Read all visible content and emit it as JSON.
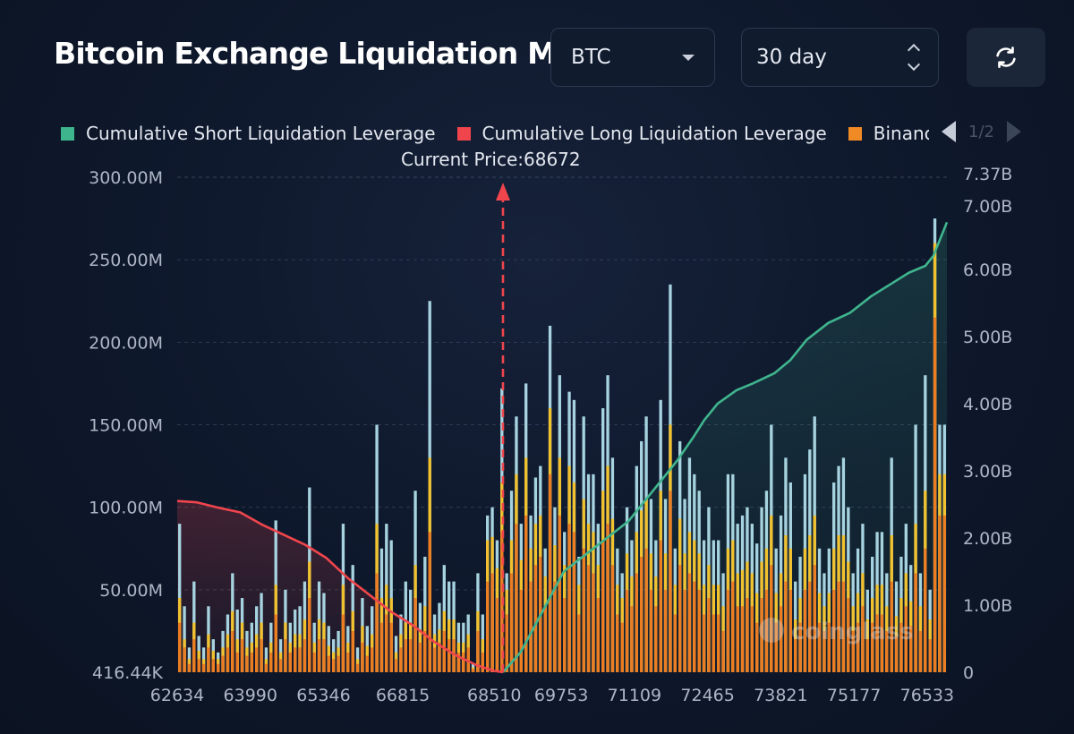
{
  "header": {
    "title": "Bitcoin Exchange Liquidation Map",
    "coin_select": "BTC",
    "range_select": "30 day",
    "refresh_icon": "refresh-icon"
  },
  "legend": {
    "items": [
      {
        "label": "Cumulative Short Liquidation Leverage",
        "color": "#3fb58e"
      },
      {
        "label": "Cumulative Long Liquidation Leverage",
        "color": "#f0454c"
      },
      {
        "label": "Binance",
        "color": "#f08a24"
      }
    ],
    "page": "1/2"
  },
  "current_price_label": "Current Price:68672",
  "watermark": "coinglass",
  "colors": {
    "binance": "#ec7d22",
    "secondary": "#f2c22e",
    "tertiary": "#a6d3df",
    "short_line": "#3fb58e",
    "long_line": "#f0454c",
    "current_price_marker": "#f0454c"
  },
  "chart_data": {
    "type": "bar",
    "current_price": 68672,
    "x_ticks": [
      "62634",
      "63990",
      "65346",
      "66815",
      "68510",
      "69753",
      "71109",
      "72465",
      "73821",
      "75177",
      "76533"
    ],
    "x_range": [
      62634,
      76900
    ],
    "left_axis": {
      "ticks": [
        "416.44K",
        "50.00M",
        "100.00M",
        "150.00M",
        "200.00M",
        "250.00M",
        "300.00M"
      ],
      "range": [
        0,
        300
      ]
    },
    "right_axis": {
      "ticks": [
        "0",
        "1.00B",
        "2.00B",
        "3.00B",
        "4.00B",
        "5.00B",
        "6.00B",
        "7.00B",
        "7.37B"
      ],
      "range": [
        0,
        7.37
      ]
    },
    "bars_total_M": [
      90,
      40,
      15,
      55,
      22,
      15,
      40,
      20,
      12,
      25,
      35,
      60,
      38,
      45,
      25,
      30,
      40,
      48,
      15,
      30,
      92,
      20,
      50,
      30,
      38,
      40,
      55,
      112,
      30,
      55,
      48,
      28,
      20,
      25,
      90,
      28,
      65,
      15,
      45,
      28,
      40,
      150,
      75,
      90,
      80,
      22,
      35,
      55,
      50,
      110,
      42,
      70,
      225,
      35,
      42,
      65,
      55,
      55,
      30,
      30,
      35,
      5,
      60,
      35,
      95,
      100,
      80,
      172,
      60,
      110,
      155,
      90,
      175,
      95,
      118,
      125,
      75,
      210,
      100,
      180,
      85,
      170,
      165,
      70,
      155,
      120,
      120,
      90,
      160,
      180,
      130,
      75,
      60,
      100,
      80,
      125,
      140,
      155,
      105,
      80,
      165,
      105,
      235,
      75,
      140,
      105,
      130,
      120,
      110,
      80,
      100,
      80,
      80,
      60,
      120,
      120,
      90,
      95,
      100,
      90,
      78,
      100,
      110,
      150,
      75,
      95,
      130,
      115,
      55,
      70,
      120,
      135,
      155,
      75,
      60,
      75,
      115,
      125,
      130,
      100,
      60,
      75,
      90,
      50,
      70,
      85,
      85,
      60,
      130,
      55,
      70,
      90,
      65,
      150,
      60,
      180,
      50,
      275,
      150,
      150
    ],
    "bars_binance_M": [
      30,
      15,
      5,
      20,
      8,
      5,
      15,
      8,
      5,
      10,
      15,
      25,
      12,
      20,
      10,
      12,
      15,
      20,
      5,
      12,
      35,
      8,
      20,
      12,
      15,
      15,
      20,
      45,
      12,
      20,
      20,
      10,
      8,
      10,
      35,
      12,
      25,
      5,
      18,
      10,
      15,
      60,
      30,
      35,
      30,
      8,
      15,
      20,
      20,
      45,
      18,
      25,
      85,
      15,
      18,
      25,
      20,
      20,
      12,
      12,
      15,
      2,
      25,
      12,
      55,
      60,
      45,
      85,
      35,
      60,
      90,
      50,
      95,
      55,
      65,
      70,
      40,
      120,
      55,
      95,
      45,
      90,
      85,
      35,
      75,
      65,
      60,
      45,
      80,
      90,
      65,
      35,
      30,
      50,
      40,
      60,
      70,
      75,
      50,
      40,
      80,
      50,
      110,
      35,
      65,
      50,
      60,
      55,
      50,
      35,
      45,
      35,
      35,
      25,
      50,
      55,
      40,
      40,
      45,
      40,
      30,
      45,
      50,
      65,
      30,
      40,
      55,
      50,
      20,
      30,
      50,
      55,
      65,
      30,
      25,
      30,
      50,
      55,
      55,
      45,
      25,
      30,
      40,
      20,
      30,
      35,
      35,
      25,
      55,
      22,
      30,
      40,
      28,
      60,
      25,
      75,
      20,
      215,
      95,
      95
    ],
    "bars_secondary_M": [
      15,
      5,
      3,
      10,
      5,
      3,
      8,
      5,
      3,
      5,
      8,
      12,
      8,
      10,
      5,
      6,
      8,
      10,
      3,
      6,
      18,
      4,
      10,
      6,
      8,
      8,
      12,
      22,
      6,
      12,
      10,
      6,
      4,
      5,
      18,
      6,
      12,
      3,
      10,
      6,
      8,
      30,
      15,
      18,
      15,
      4,
      8,
      10,
      10,
      20,
      8,
      15,
      45,
      8,
      8,
      12,
      12,
      12,
      6,
      6,
      8,
      1,
      12,
      8,
      25,
      22,
      18,
      30,
      15,
      20,
      30,
      18,
      35,
      20,
      25,
      25,
      18,
      40,
      22,
      35,
      20,
      35,
      30,
      18,
      30,
      25,
      25,
      20,
      30,
      35,
      28,
      18,
      15,
      22,
      18,
      25,
      28,
      30,
      22,
      18,
      30,
      22,
      40,
      18,
      28,
      22,
      25,
      25,
      22,
      18,
      20,
      18,
      18,
      15,
      25,
      25,
      20,
      22,
      22,
      20,
      18,
      22,
      25,
      30,
      18,
      20,
      28,
      25,
      12,
      15,
      25,
      28,
      30,
      18,
      15,
      18,
      25,
      28,
      28,
      22,
      15,
      18,
      20,
      12,
      15,
      18,
      18,
      15,
      28,
      12,
      15,
      20,
      15,
      30,
      15,
      35,
      12,
      45,
      25,
      25
    ],
    "short_cumulative_B": [
      [
        68672,
        0
      ],
      [
        69000,
        0.3
      ],
      [
        69400,
        0.9
      ],
      [
        69800,
        1.5
      ],
      [
        70200,
        1.75
      ],
      [
        70600,
        2.0
      ],
      [
        71000,
        2.25
      ],
      [
        71300,
        2.55
      ],
      [
        71600,
        2.85
      ],
      [
        71900,
        3.15
      ],
      [
        72200,
        3.5
      ],
      [
        72400,
        3.75
      ],
      [
        72650,
        4.0
      ],
      [
        73000,
        4.2
      ],
      [
        73300,
        4.3
      ],
      [
        73700,
        4.45
      ],
      [
        74000,
        4.65
      ],
      [
        74300,
        4.95
      ],
      [
        74700,
        5.2
      ],
      [
        75100,
        5.35
      ],
      [
        75500,
        5.6
      ],
      [
        75900,
        5.8
      ],
      [
        76200,
        5.95
      ],
      [
        76500,
        6.05
      ],
      [
        76650,
        6.2
      ],
      [
        76900,
        6.7
      ]
    ],
    "long_cumulative_B": [
      [
        62634,
        2.55
      ],
      [
        63000,
        2.53
      ],
      [
        63400,
        2.45
      ],
      [
        63800,
        2.38
      ],
      [
        64200,
        2.2
      ],
      [
        64600,
        2.05
      ],
      [
        65000,
        1.9
      ],
      [
        65400,
        1.7
      ],
      [
        65800,
        1.4
      ],
      [
        66200,
        1.15
      ],
      [
        66600,
        0.9
      ],
      [
        67000,
        0.7
      ],
      [
        67400,
        0.45
      ],
      [
        67800,
        0.25
      ],
      [
        68200,
        0.1
      ],
      [
        68510,
        0.02
      ],
      [
        68672,
        0
      ]
    ]
  }
}
